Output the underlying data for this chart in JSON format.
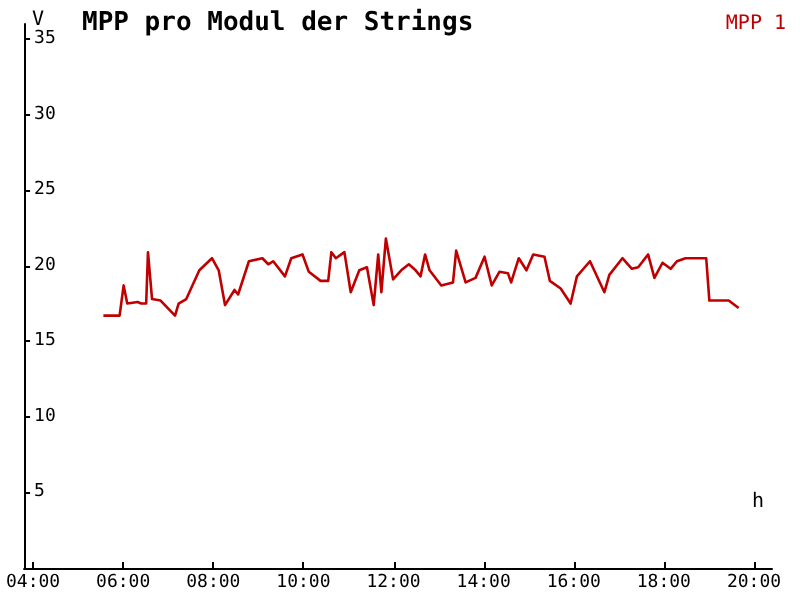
{
  "chart_data": {
    "type": "line",
    "title": "MPP pro Modul der Strings",
    "xlabel": "h",
    "ylabel": "V",
    "xlim": [
      3.8,
      20.4
    ],
    "ylim": [
      0,
      36
    ],
    "xticks": [
      {
        "value": 4,
        "label": "04:00"
      },
      {
        "value": 6,
        "label": "06:00"
      },
      {
        "value": 8,
        "label": "08:00"
      },
      {
        "value": 10,
        "label": "10:00"
      },
      {
        "value": 12,
        "label": "12:00"
      },
      {
        "value": 14,
        "label": "14:00"
      },
      {
        "value": 16,
        "label": "16:00"
      },
      {
        "value": 18,
        "label": "18:00"
      },
      {
        "value": 20,
        "label": "20:00"
      }
    ],
    "yticks": [
      5,
      10,
      15,
      20,
      25,
      30,
      35
    ],
    "grid": false,
    "legend": "top right",
    "marker": "none",
    "line_style": "solid",
    "series": [
      {
        "name": "MPP 1",
        "color": "#c00000",
        "x": [
          5.56,
          5.92,
          6.01,
          6.09,
          6.32,
          6.4,
          6.51,
          6.55,
          6.64,
          6.83,
          7.15,
          7.23,
          7.4,
          7.69,
          7.97,
          8.12,
          8.26,
          8.47,
          8.55,
          8.79,
          9.09,
          9.22,
          9.33,
          9.59,
          9.73,
          9.98,
          10.12,
          10.38,
          10.55,
          10.62,
          10.72,
          10.91,
          11.05,
          11.24,
          11.41,
          11.56,
          11.66,
          11.73,
          11.83,
          11.99,
          12.17,
          12.34,
          12.49,
          12.6,
          12.7,
          12.8,
          13.06,
          13.32,
          13.39,
          13.6,
          13.82,
          14.02,
          14.18,
          14.35,
          14.54,
          14.61,
          14.78,
          14.95,
          15.1,
          15.35,
          15.47,
          15.71,
          15.93,
          16.07,
          16.36,
          16.68,
          16.79,
          17.08,
          17.29,
          17.43,
          17.65,
          17.79,
          17.97,
          18.15,
          18.29,
          18.48,
          18.94,
          19.01,
          19.44,
          19.66
        ],
        "values": [
          16.7,
          16.7,
          18.7,
          17.5,
          17.6,
          17.5,
          17.5,
          20.9,
          17.8,
          17.7,
          16.7,
          17.5,
          17.8,
          19.7,
          20.5,
          19.7,
          17.4,
          18.4,
          18.1,
          20.3,
          20.5,
          20.1,
          20.3,
          19.3,
          20.5,
          20.75,
          19.6,
          19.0,
          19.0,
          20.9,
          20.5,
          20.9,
          18.25,
          19.7,
          19.9,
          17.4,
          20.75,
          18.25,
          21.8,
          19.1,
          19.7,
          20.1,
          19.7,
          19.3,
          20.75,
          19.7,
          18.7,
          18.9,
          21.0,
          18.9,
          19.2,
          20.6,
          18.7,
          19.6,
          19.5,
          18.9,
          20.5,
          19.7,
          20.75,
          20.6,
          19.0,
          18.5,
          17.5,
          19.3,
          20.3,
          18.25,
          19.4,
          20.5,
          19.8,
          19.9,
          20.75,
          19.2,
          20.2,
          19.8,
          20.3,
          20.5,
          20.5,
          17.7,
          17.7,
          17.2
        ]
      }
    ]
  }
}
